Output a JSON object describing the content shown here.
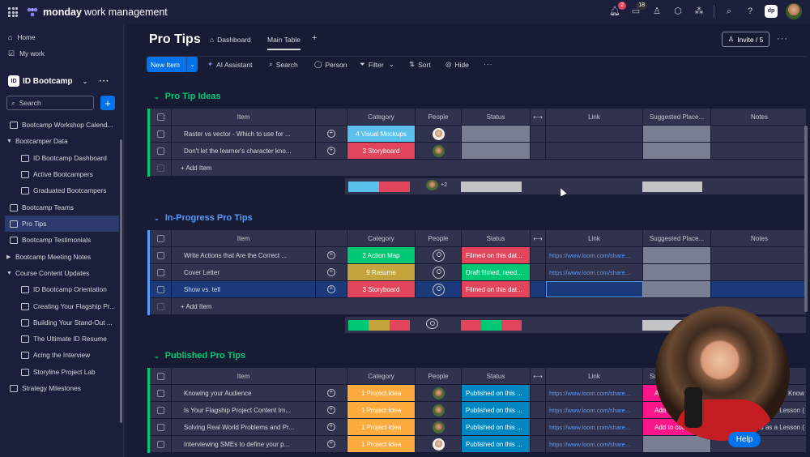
{
  "app": {
    "brand_bold": "monday",
    "brand_rest": "work management",
    "notif_count": "2",
    "inbox_count": "18"
  },
  "sidebar": {
    "home": "Home",
    "mywork": "My work",
    "workspace": "ID Bootcamp",
    "search": "Search",
    "items": [
      "Bootcamp Workshop Calend...",
      "Bootcamper Data",
      "ID Bootcamp Dashboard",
      "Active Bootcampers",
      "Graduated Bootcampers",
      "Bootcamp Teams",
      "Pro Tips",
      "Bootcamp Testimonials",
      "Bootcamp Meeting Notes",
      "Course Content Updates",
      "ID Bootcamp Orientation",
      "Creating Your Flagship Pr...",
      "Building Your Stand-Out ...",
      "The Ultimate ID Resume",
      "Acing the Interview",
      "Storyline Project Lab",
      "Strategy Milestones"
    ]
  },
  "board": {
    "title": "Pro Tips",
    "tab_dashboard": "Dashboard",
    "tab_main": "Main Table",
    "invite": "Invite / 5"
  },
  "toolbar": {
    "new_item": "New Item",
    "ai": "AI Assistant",
    "search": "Search",
    "person": "Person",
    "filter": "Filter",
    "sort": "Sort",
    "hide": "Hide"
  },
  "columns": {
    "item": "Item",
    "category": "Category",
    "people": "People",
    "status": "Status",
    "link": "Link",
    "suggested": "Suggested Place...",
    "notes": "Notes"
  },
  "add_item": "+ Add Item",
  "groups": [
    {
      "name": "Pro Tip Ideas",
      "color": "#00c875",
      "rows": [
        {
          "item": "Raster vs vector - Which to use for ...",
          "category": "4 Visual Mockups",
          "cat_color": "#5bc0eb",
          "people": "f",
          "status": "",
          "status_color": "#797e93",
          "link": "",
          "sugg": "#797e93",
          "notes": ""
        },
        {
          "item": "Don't let the learner's character kno...",
          "category": "3 Storyboard",
          "cat_color": "#e2445c",
          "people": "m",
          "status": "",
          "status_color": "#797e93",
          "link": "",
          "sugg": "#797e93",
          "notes": ""
        }
      ],
      "people_summary": "+2"
    },
    {
      "name": "In-Progress Pro Tips",
      "color": "#579bfc",
      "rows": [
        {
          "item": "Write Actions that Are the Correct ...",
          "category": "2 Action Map",
          "cat_color": "#00c875",
          "people": "e",
          "status": "Filmed on this dat...",
          "status_color": "#e2445c",
          "link": "https://www.loom.com/share...",
          "sugg": "#797e93",
          "notes": ""
        },
        {
          "item": "Cover Letter",
          "category": "9 Resume",
          "cat_color": "#c4a43d",
          "people": "e",
          "status": "Draft filmed, need...",
          "status_color": "#00c875",
          "link": "https://www.loom.com/share...",
          "sugg": "#797e93",
          "notes": ""
        },
        {
          "item": "Show vs. tell",
          "category": "3 Storyboard",
          "cat_color": "#e2445c",
          "people": "e",
          "status": "Filmed on this dat...",
          "status_color": "#e2445c",
          "link": "",
          "sugg": "#797e93",
          "notes": ""
        }
      ]
    },
    {
      "name": "Published Pro Tips",
      "color": "#00c875",
      "rows": [
        {
          "item": "Knowing your Audience",
          "category": "1 Project Idea",
          "cat_color": "#fdab3d",
          "people": "m",
          "status": "Published on this ...",
          "status_color": "#0086c0",
          "link": "https://www.loom.com/share...",
          "sugg_text": "Ad",
          "sugg": "#ff158a",
          "notes": "p: Know"
        },
        {
          "item": "Is Your Flagship Project Content Im...",
          "category": "1 Project Idea",
          "cat_color": "#fdab3d",
          "people": "m",
          "status": "Published on this ...",
          "status_color": "#0086c0",
          "link": "https://www.loom.com/share...",
          "sugg_text": "Add",
          "sugg": "#ff158a",
          "notes": "ed as a Lesson ("
        },
        {
          "item": "Solving Real World Problems and Pr...",
          "category": "1 Project Idea",
          "cat_color": "#fdab3d",
          "people": "m",
          "status": "Published on this ...",
          "status_color": "#0086c0",
          "link": "https://www.loom.com/share...",
          "sugg_text": "Add to cou",
          "sugg": "#ff158a",
          "notes": "ed as a Lesson ("
        },
        {
          "item": "Interviewing SMEs to define your p...",
          "category": "1 Project Idea",
          "cat_color": "#fdab3d",
          "people": "f",
          "status": "Published on this ...",
          "status_color": "#0086c0",
          "link": "https://www.loom.com/share...",
          "sugg_text": "",
          "sugg": "#797e93",
          "notes": ""
        }
      ]
    }
  ],
  "help": "Help"
}
